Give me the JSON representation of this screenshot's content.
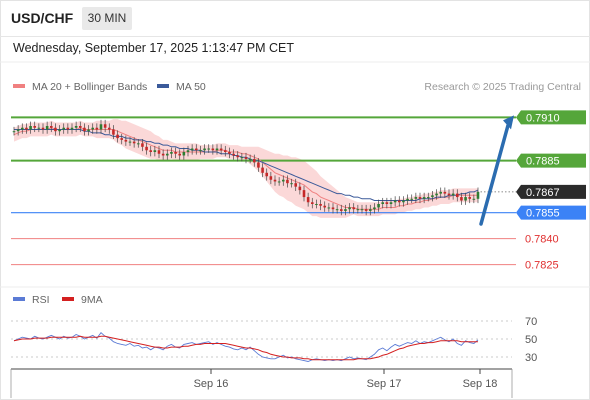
{
  "header": {
    "symbol": "USD/CHF",
    "timeframe": "30 MIN"
  },
  "datetime": "Wednesday, September 17, 2025 1:13:47 PM CET",
  "copyright": "Research © 2025 Trading Central",
  "colors": {
    "ma20": "#f08080",
    "ma50": "#3b5a9a",
    "bands": "#f9c8c8",
    "up": "#2e7d32",
    "down": "#c62828",
    "target": "#55a63a",
    "pivot": "#3b82f6",
    "support": "#f08080",
    "arrow": "#2b6cb0",
    "rsi": "#5b7bd5",
    "rsi_ma": "#d42020"
  },
  "chart_data": [
    {
      "type": "line",
      "subtype": "candlestick",
      "legend": [
        {
          "name": "MA 20 + Bollinger Bands",
          "color": "#f08080"
        },
        {
          "name": "MA 50",
          "color": "#3b5a9a"
        }
      ],
      "legend_position": "top-left",
      "x_ticks": [
        "Sep 16",
        "Sep 17",
        "Sep 18"
      ],
      "ylim": [
        0.7815,
        0.792
      ],
      "close": [
        0.7902,
        0.7903,
        0.7904,
        0.7903,
        0.7905,
        0.7904,
        0.7904,
        0.7903,
        0.7905,
        0.7904,
        0.7902,
        0.7903,
        0.7904,
        0.7903,
        0.7904,
        0.7905,
        0.7904,
        0.7902,
        0.7903,
        0.7904,
        0.7903,
        0.7906,
        0.7904,
        0.7903,
        0.79,
        0.7898,
        0.7897,
        0.7896,
        0.7896,
        0.7895,
        0.7895,
        0.7893,
        0.7891,
        0.789,
        0.7891,
        0.7889,
        0.7888,
        0.7889,
        0.789,
        0.7889,
        0.7888,
        0.789,
        0.7891,
        0.7892,
        0.7891,
        0.7891,
        0.7892,
        0.7892,
        0.7891,
        0.7892,
        0.7891,
        0.789,
        0.7889,
        0.7888,
        0.7887,
        0.7887,
        0.7886,
        0.7886,
        0.7884,
        0.7881,
        0.7878,
        0.7876,
        0.7874,
        0.7873,
        0.7873,
        0.7874,
        0.7872,
        0.7872,
        0.787,
        0.7868,
        0.7864,
        0.7861,
        0.786,
        0.786,
        0.7859,
        0.7858,
        0.7858,
        0.7857,
        0.7857,
        0.7856,
        0.7857,
        0.7858,
        0.7857,
        0.7857,
        0.7857,
        0.7856,
        0.7857,
        0.7858,
        0.786,
        0.7861,
        0.786,
        0.7861,
        0.7862,
        0.7861,
        0.7862,
        0.7863,
        0.7863,
        0.7864,
        0.7863,
        0.7864,
        0.7864,
        0.7865,
        0.7866,
        0.7867,
        0.7866,
        0.7865,
        0.7866,
        0.7864,
        0.7862,
        0.7864,
        0.7863,
        0.7863,
        0.7867
      ],
      "ma20": [
        0.79,
        0.7901,
        0.7902,
        0.7902,
        0.7903,
        0.7903,
        0.7903,
        0.7903,
        0.7903,
        0.7904,
        0.7903,
        0.7903,
        0.7903,
        0.7903,
        0.7903,
        0.7903,
        0.7904,
        0.7903,
        0.7903,
        0.7903,
        0.7903,
        0.7903,
        0.7903,
        0.7903,
        0.7903,
        0.7902,
        0.7901,
        0.79,
        0.7899,
        0.7898,
        0.7897,
        0.7896,
        0.7895,
        0.7894,
        0.7893,
        0.7892,
        0.7891,
        0.7891,
        0.7891,
        0.789,
        0.789,
        0.789,
        0.789,
        0.789,
        0.789,
        0.789,
        0.789,
        0.789,
        0.789,
        0.7891,
        0.7891,
        0.7891,
        0.789,
        0.789,
        0.789,
        0.7889,
        0.7889,
        0.7888,
        0.7887,
        0.7886,
        0.7884,
        0.7882,
        0.788,
        0.7878,
        0.7877,
        0.7876,
        0.7875,
        0.7874,
        0.7873,
        0.7872,
        0.7871,
        0.7869,
        0.7867,
        0.7866,
        0.7864,
        0.7863,
        0.7862,
        0.7861,
        0.786,
        0.7859,
        0.7858,
        0.7858,
        0.7858,
        0.7857,
        0.7857,
        0.7857,
        0.7857,
        0.7857,
        0.7857,
        0.7858,
        0.7858,
        0.7858,
        0.7858,
        0.7859,
        0.7859,
        0.786,
        0.786,
        0.7861,
        0.7861,
        0.7862,
        0.7862,
        0.7863,
        0.7863,
        0.7864,
        0.7864,
        0.7864,
        0.7865,
        0.7865,
        0.7865,
        0.7865,
        0.7865,
        0.7865,
        0.7865
      ],
      "ma50": [
        0.7903,
        0.7903,
        0.7903,
        0.7903,
        0.7903,
        0.7903,
        0.7903,
        0.7903,
        0.7903,
        0.7903,
        0.7903,
        0.7903,
        0.7903,
        0.7903,
        0.7903,
        0.7903,
        0.7903,
        0.7902,
        0.7902,
        0.7901,
        0.7901,
        0.7901,
        0.79,
        0.79,
        0.7899,
        0.7899,
        0.7899,
        0.7898,
        0.7898,
        0.7897,
        0.7897,
        0.7897,
        0.7896,
        0.7896,
        0.7895,
        0.7895,
        0.7894,
        0.7894,
        0.7893,
        0.7893,
        0.7892,
        0.7892,
        0.7892,
        0.7891,
        0.7891,
        0.7891,
        0.789,
        0.789,
        0.789,
        0.789,
        0.7889,
        0.7889,
        0.7889,
        0.7888,
        0.7888,
        0.7887,
        0.7887,
        0.7886,
        0.7885,
        0.7885,
        0.7884,
        0.7883,
        0.7882,
        0.7881,
        0.788,
        0.7879,
        0.7878,
        0.7877,
        0.7876,
        0.7875,
        0.7874,
        0.7873,
        0.7872,
        0.7871,
        0.787,
        0.7869,
        0.7868,
        0.7867,
        0.7866,
        0.7866,
        0.7865,
        0.7865,
        0.7864,
        0.7864,
        0.7863,
        0.7863,
        0.7863,
        0.7862,
        0.7862,
        0.7862,
        0.7862,
        0.7862,
        0.7862,
        0.7862,
        0.7862,
        0.7862,
        0.7862,
        0.7862,
        0.7863,
        0.7863,
        0.7863,
        0.7863,
        0.7864,
        0.7864,
        0.7864,
        0.7865,
        0.7865,
        0.7865,
        0.7866,
        0.7866,
        0.7867,
        0.7867,
        0.7868
      ],
      "band_width": [
        0.0004,
        0.0004,
        0.0004,
        0.0004,
        0.0004,
        0.0004,
        0.0004,
        0.0004,
        0.0004,
        0.0004,
        0.0004,
        0.0004,
        0.0004,
        0.0004,
        0.0004,
        0.0004,
        0.0004,
        0.0004,
        0.0004,
        0.0004,
        0.0005,
        0.0005,
        0.0005,
        0.0005,
        0.0006,
        0.0007,
        0.0007,
        0.0008,
        0.0008,
        0.0008,
        0.0008,
        0.0008,
        0.0008,
        0.0008,
        0.0007,
        0.0007,
        0.0006,
        0.0006,
        0.0005,
        0.0005,
        0.0005,
        0.0005,
        0.0005,
        0.0005,
        0.0005,
        0.0004,
        0.0004,
        0.0004,
        0.0004,
        0.0004,
        0.0004,
        0.0004,
        0.0004,
        0.0004,
        0.0004,
        0.0004,
        0.0004,
        0.0005,
        0.0006,
        0.0007,
        0.0008,
        0.0009,
        0.001,
        0.0011,
        0.0012,
        0.0012,
        0.0013,
        0.0013,
        0.0014,
        0.0014,
        0.0014,
        0.0014,
        0.0014,
        0.0013,
        0.0012,
        0.0011,
        0.001,
        0.0009,
        0.0008,
        0.0007,
        0.0006,
        0.0005,
        0.0004,
        0.0004,
        0.0004,
        0.0004,
        0.0004,
        0.0004,
        0.0004,
        0.0004,
        0.0004,
        0.0004,
        0.0004,
        0.0004,
        0.0004,
        0.0004,
        0.0004,
        0.0004,
        0.0004,
        0.0004,
        0.0004,
        0.0004,
        0.0004,
        0.0004,
        0.0004,
        0.0004,
        0.0004,
        0.0004,
        0.0004,
        0.0004,
        0.0004,
        0.0004,
        0.0004
      ],
      "levels": [
        {
          "value": 0.791,
          "label": "0.7910",
          "kind": "target"
        },
        {
          "value": 0.7885,
          "label": "0.7885",
          "kind": "target"
        },
        {
          "value": 0.7867,
          "label": "0.7867",
          "kind": "last"
        },
        {
          "value": 0.7855,
          "label": "0.7855",
          "kind": "pivot"
        },
        {
          "value": 0.784,
          "label": "0.7840",
          "kind": "support"
        },
        {
          "value": 0.7825,
          "label": "0.7825",
          "kind": "support"
        }
      ],
      "arrow": {
        "direction": "up"
      }
    },
    {
      "type": "line",
      "legend": [
        {
          "name": "RSI",
          "color": "#5b7bd5"
        },
        {
          "name": "9MA",
          "color": "#d42020"
        }
      ],
      "ylim": [
        20,
        80
      ],
      "y_ticks": [
        "70",
        "50",
        "30"
      ],
      "rsi": [
        48,
        50,
        52,
        51,
        50,
        53,
        51,
        50,
        52,
        54,
        52,
        50,
        53,
        51,
        52,
        55,
        53,
        50,
        52,
        54,
        51,
        57,
        53,
        51,
        47,
        45,
        44,
        43,
        45,
        42,
        43,
        40,
        41,
        38,
        41,
        40,
        38,
        42,
        44,
        41,
        40,
        44,
        45,
        46,
        44,
        45,
        46,
        47,
        44,
        46,
        44,
        42,
        41,
        39,
        38,
        40,
        38,
        41,
        37,
        33,
        30,
        29,
        28,
        28,
        30,
        32,
        29,
        30,
        28,
        27,
        26,
        25,
        27,
        28,
        27,
        26,
        27,
        26,
        27,
        26,
        28,
        30,
        28,
        29,
        28,
        27,
        30,
        33,
        38,
        40,
        37,
        41,
        44,
        42,
        44,
        46,
        45,
        48,
        45,
        47,
        46,
        48,
        50,
        52,
        49,
        47,
        50,
        45,
        43,
        48,
        46,
        45,
        49
      ],
      "rsi_9ma": [
        48,
        49,
        50,
        50,
        50,
        51,
        51,
        51,
        51,
        52,
        52,
        52,
        52,
        52,
        52,
        52,
        53,
        52,
        52,
        52,
        52,
        53,
        53,
        52,
        51,
        50,
        49,
        48,
        47,
        46,
        45,
        44,
        43,
        42,
        41,
        41,
        40,
        40,
        41,
        41,
        41,
        42,
        42,
        43,
        44,
        44,
        45,
        45,
        45,
        45,
        45,
        45,
        44,
        43,
        42,
        41,
        40,
        40,
        39,
        38,
        36,
        35,
        33,
        32,
        31,
        30,
        30,
        29,
        29,
        29,
        28,
        28,
        27,
        27,
        27,
        27,
        27,
        27,
        27,
        27,
        27,
        27,
        27,
        28,
        28,
        28,
        28,
        29,
        30,
        32,
        33,
        35,
        37,
        39,
        40,
        42,
        43,
        44,
        45,
        45,
        46,
        46,
        47,
        48,
        48,
        48,
        48,
        48,
        47,
        47,
        47,
        47,
        47
      ]
    }
  ]
}
